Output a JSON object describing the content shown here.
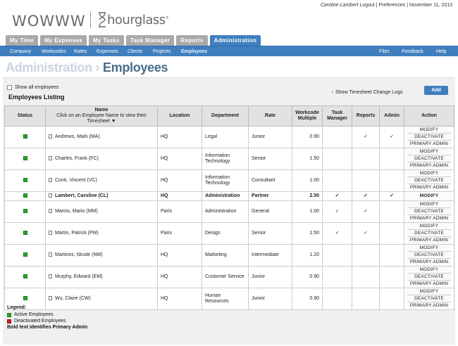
{
  "logo": {
    "wordmark": "WOWWW",
    "brand": "hourglass",
    "tm": "®"
  },
  "user": {
    "name": "Caroline Lambert",
    "logout": "Logout",
    "sep1": "|",
    "preferences": "Preferences",
    "sep2": "|",
    "date": "November 11, 2013"
  },
  "main_tabs": [
    "My Time",
    "My Expenses",
    "My Tasks",
    "Task Manager",
    "Reports",
    "Administration"
  ],
  "subnav": {
    "left": [
      "Company",
      "Workcodes",
      "Rates",
      "Expenses",
      "Clients",
      "Projects",
      "Employees"
    ],
    "right": [
      "Files",
      "Feedback",
      "Help"
    ]
  },
  "page_title": {
    "section": "Administration",
    "separator": "›",
    "current": "Employees"
  },
  "show_all_label": "Show all employees",
  "listing_title": "Employees Listing",
  "change_logs_label": "Show Timesheet Change Logs",
  "add_label": "Add",
  "table": {
    "headers": {
      "status": "Status",
      "name": "Name",
      "name_sub": "Click on an Employee Name to view their Timesheet",
      "location": "Location",
      "department": "Department",
      "rate": "Rate",
      "multiple": "Workcode Multiple",
      "task_manager": "Task Manager",
      "reports": "Reports",
      "admin": "Admin",
      "action": "Action"
    },
    "actions": {
      "modify": "MODIFY",
      "deactivate": "DEACTIVATE",
      "primary_admin": "PRIMARY ADMIN"
    },
    "check": "✓",
    "rows": [
      {
        "name": "Andrews, Mark (MA)",
        "location": "HQ",
        "department": "Legal",
        "rate": "Junior",
        "multiple": "0.90",
        "tm": false,
        "reports": true,
        "admin": true,
        "primary": false
      },
      {
        "name": "Charles, Frank (FC)",
        "location": "HQ",
        "department": "Information Technology",
        "rate": "Senior",
        "multiple": "1.50",
        "tm": false,
        "reports": false,
        "admin": false,
        "primary": false
      },
      {
        "name": "Conti, Vincent (VC)",
        "location": "HQ",
        "department": "Information Technology",
        "rate": "Consultant",
        "multiple": "1.00",
        "tm": false,
        "reports": false,
        "admin": false,
        "primary": false
      },
      {
        "name": "Lambert, Caroline (CL)",
        "location": "HQ",
        "department": "Administration",
        "rate": "Partner",
        "multiple": "2.50",
        "tm": true,
        "reports": true,
        "admin": true,
        "primary": true
      },
      {
        "name": "Marois, Mario (MM)",
        "location": "Paris",
        "department": "Administration",
        "rate": "General",
        "multiple": "1.00",
        "tm": true,
        "reports": true,
        "admin": false,
        "primary": false
      },
      {
        "name": "Martin, Patrick (PM)",
        "location": "Paris",
        "department": "Design",
        "rate": "Senior",
        "multiple": "1.50",
        "tm": true,
        "reports": true,
        "admin": false,
        "primary": false
      },
      {
        "name": "Martinez, Nicole (NM)",
        "location": "HQ",
        "department": "Marketing",
        "rate": "Intermediate",
        "multiple": "1.20",
        "tm": false,
        "reports": false,
        "admin": false,
        "primary": false
      },
      {
        "name": "Murphy, Edward (EM)",
        "location": "HQ",
        "department": "Customer Service",
        "rate": "Junior",
        "multiple": "0.90",
        "tm": false,
        "reports": false,
        "admin": false,
        "primary": false
      },
      {
        "name": "Wu, Claire (CW)",
        "location": "HQ",
        "department": "Human Resources",
        "rate": "Junior",
        "multiple": "0.90",
        "tm": false,
        "reports": false,
        "admin": false,
        "primary": false
      }
    ]
  },
  "legend": {
    "title": "Legend:",
    "active": "Active Employees",
    "deactivated": "Deactivated Employees",
    "bold_note": "Bold text identifies Primary Admin"
  },
  "colors": {
    "accent": "#3f7fbf",
    "active_status": "#2aa52a",
    "deactivated_status": "#d02020",
    "tab_inactive": "#a9a9a9"
  }
}
